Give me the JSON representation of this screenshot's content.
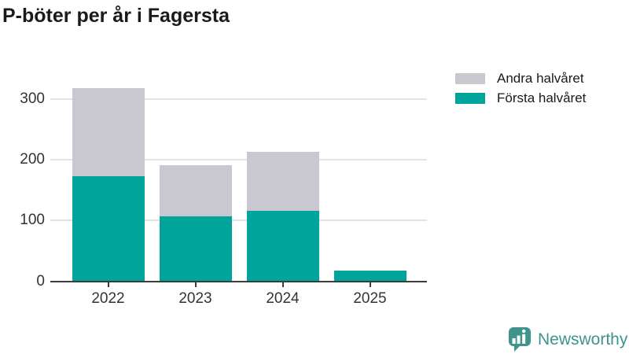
{
  "title": "P-böter per år i Fagersta",
  "chart_data": {
    "type": "bar",
    "stacked": true,
    "title": "P-böter per år i Fagersta",
    "categories": [
      "2022",
      "2023",
      "2024",
      "2025"
    ],
    "series": [
      {
        "name": "Första halvåret",
        "color": "#00a49a",
        "values": [
          173,
          107,
          116,
          18
        ]
      },
      {
        "name": "Andra halvåret",
        "color": "#c9c7cf",
        "values": [
          145,
          84,
          97,
          0
        ]
      }
    ],
    "xlabel": "",
    "ylabel": "",
    "ylim": [
      0,
      340
    ],
    "yticks": [
      0,
      100,
      200,
      300
    ],
    "grid": true,
    "grid_color": "#e3e3e6",
    "axis_color": "#3c3c3c",
    "legend_position": "top-right"
  },
  "legend": {
    "items": [
      {
        "label": "Andra halvåret",
        "color": "#c9c7cf"
      },
      {
        "label": "Första halvåret",
        "color": "#00a49a"
      }
    ]
  },
  "branding": {
    "logo_text": "Newsworthy",
    "logo_color": "#3e948c",
    "logo_icon": "newsworthy-speech-bubble-bar-chart-icon"
  }
}
